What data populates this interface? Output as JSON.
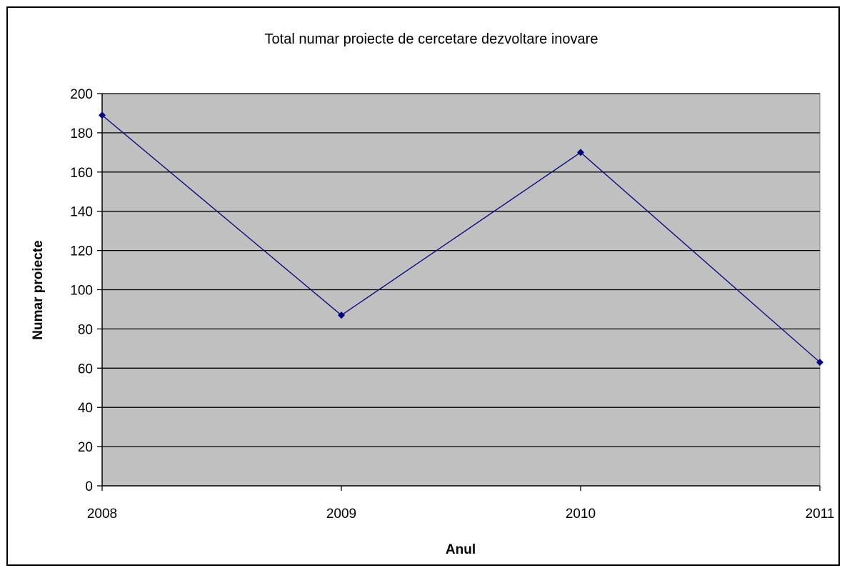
{
  "chart_data": {
    "type": "line",
    "title": "Total numar proiecte de cercetare dezvoltare inovare",
    "xlabel": "Anul",
    "ylabel": "Numar proiecte",
    "categories": [
      "2008",
      "2009",
      "2010",
      "2011"
    ],
    "series": [
      {
        "values": [
          189,
          87,
          170,
          63
        ]
      }
    ],
    "ylim": [
      0,
      200
    ],
    "yticks": [
      0,
      20,
      40,
      60,
      80,
      100,
      120,
      140,
      160,
      180,
      200
    ],
    "grid": true,
    "legend": "none",
    "colors": {
      "line": "#000080",
      "marker": "#000080",
      "plot_background": "#c0c0c0",
      "grid": "#000000"
    }
  }
}
